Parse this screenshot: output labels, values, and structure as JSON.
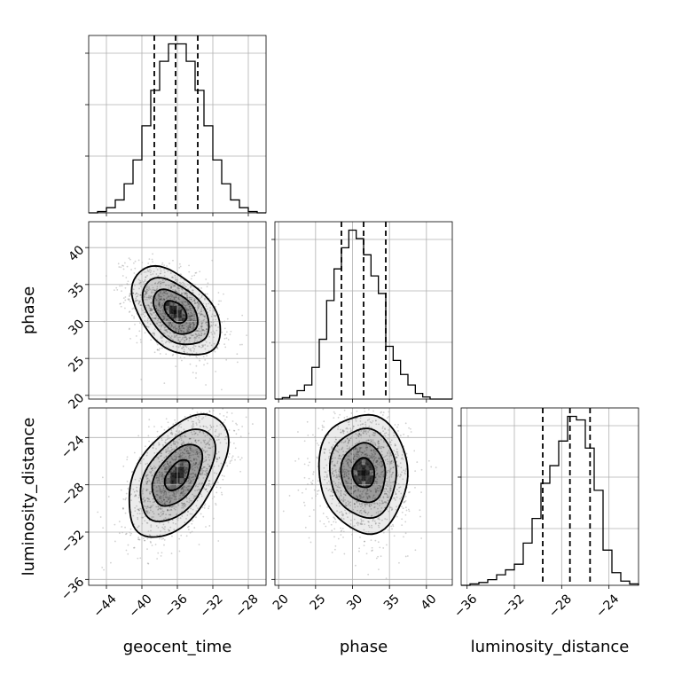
{
  "chart_data": {
    "type": "corner",
    "parameters": [
      "geocent_time",
      "phase",
      "luminosity_distance"
    ],
    "axis_labels": {
      "geocent_time": "geocent_time",
      "phase": "phase",
      "luminosity_distance": "luminosity_distance"
    },
    "ranges": {
      "geocent_time": [
        -46,
        -26
      ],
      "phase": [
        19.5,
        43.5
      ],
      "luminosity_distance": [
        -36.5,
        -21.5
      ]
    },
    "ticks": {
      "geocent_time": [
        -44,
        -40,
        -36,
        -32,
        -28
      ],
      "phase": [
        20,
        25,
        30,
        35,
        40
      ],
      "luminosity_distance": [
        -36,
        -32,
        -28,
        -24
      ]
    },
    "tick_labels": {
      "geocent_time": [
        "−44",
        "−40",
        "−36",
        "−32",
        "−28"
      ],
      "phase": [
        "20",
        "25",
        "30",
        "35",
        "40"
      ],
      "luminosity_distance": [
        "−36",
        "−32",
        "−28",
        "−24"
      ]
    },
    "marginals": [
      {
        "parameter": "geocent_time",
        "quantiles": [
          -38.6,
          -36.2,
          -33.7
        ],
        "bin_edges": [
          -46,
          -45,
          -44,
          -43,
          -42,
          -41,
          -40,
          -39,
          -38,
          -37,
          -36,
          -35,
          -34,
          -33,
          -32,
          -31,
          -30,
          -29,
          -28,
          -27,
          -26
        ],
        "counts": [
          0,
          2,
          8,
          20,
          45,
          82,
          135,
          190,
          235,
          262,
          262,
          235,
          190,
          135,
          82,
          45,
          20,
          8,
          2,
          0
        ]
      },
      {
        "parameter": "phase",
        "quantiles": [
          28.5,
          31.5,
          34.5
        ],
        "bin_edges": [
          19.5,
          20.5,
          21.5,
          22.5,
          23.5,
          24.5,
          25.5,
          26.5,
          27.5,
          28.5,
          29.5,
          30.5,
          31.5,
          32.5,
          33.5,
          34.5,
          35.5,
          36.5,
          37.5,
          38.5,
          39.5,
          40.5,
          41.5,
          42.5,
          43.5
        ],
        "counts": [
          0,
          2,
          5,
          12,
          20,
          45,
          85,
          140,
          185,
          215,
          240,
          228,
          205,
          175,
          150,
          75,
          55,
          35,
          20,
          8,
          3,
          0,
          0,
          0
        ]
      },
      {
        "parameter": "luminosity_distance",
        "quantiles": [
          -29.6,
          -27.3,
          -25.6
        ],
        "bin_edges": [
          -36.5,
          -35.75,
          -35,
          -34.25,
          -33.5,
          -32.75,
          -32,
          -31.25,
          -30.5,
          -29.75,
          -29,
          -28.25,
          -27.5,
          -26.75,
          -26,
          -25.25,
          -24.5,
          -23.75,
          -23,
          -22.25,
          -21.5
        ],
        "counts": [
          0,
          2,
          4,
          8,
          15,
          22,
          30,
          60,
          95,
          145,
          170,
          205,
          240,
          235,
          195,
          135,
          50,
          18,
          6,
          2
        ]
      }
    ],
    "joint": [
      {
        "x": "geocent_time",
        "y": "phase",
        "mean": [
          -36.2,
          31.3
        ],
        "sd": [
          2.5,
          3.0
        ],
        "correlation": -0.45
      },
      {
        "x": "geocent_time",
        "y": "luminosity_distance",
        "mean": [
          -36.0,
          -27.2
        ],
        "sd": [
          2.8,
          2.6
        ],
        "correlation": 0.5
      },
      {
        "x": "phase",
        "y": "luminosity_distance",
        "mean": [
          31.5,
          -27.0
        ],
        "sd": [
          3.0,
          2.5
        ],
        "correlation": -0.05
      }
    ],
    "contour_levels_sigma": [
      0.5,
      1.0,
      1.5,
      2.0
    ],
    "grid": true
  }
}
